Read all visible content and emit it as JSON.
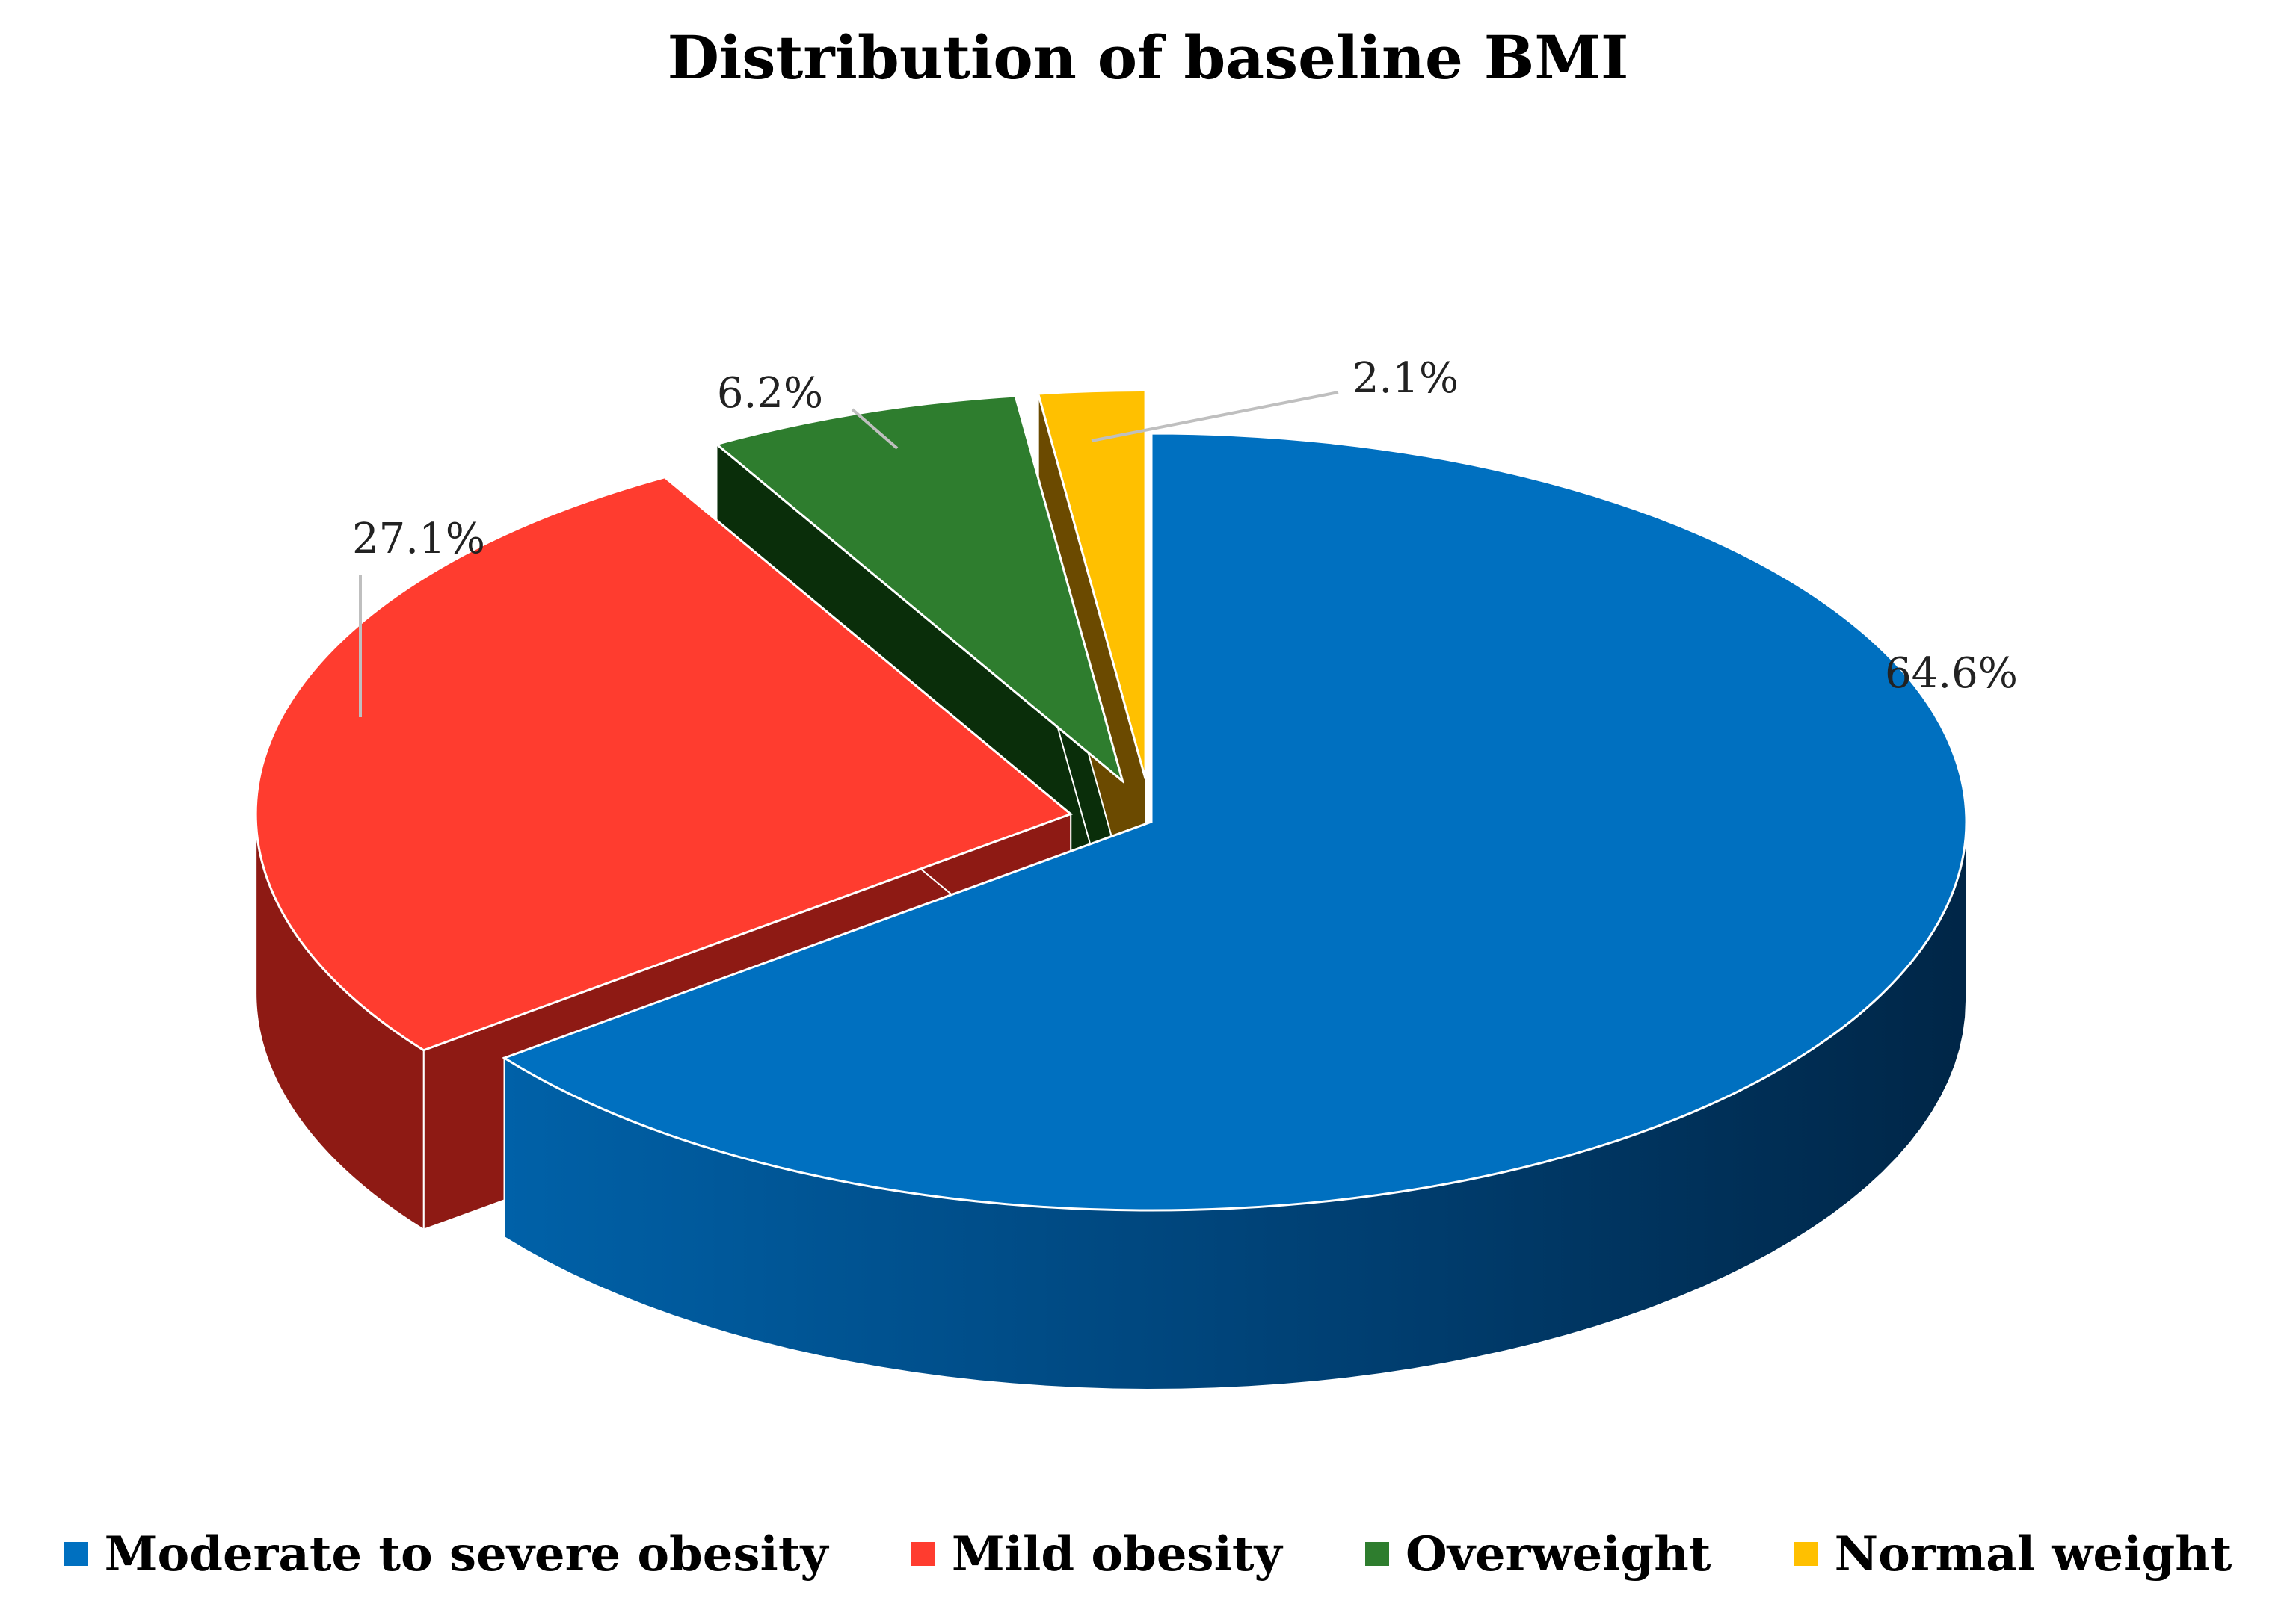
{
  "chart_data": {
    "type": "pie",
    "title": "Distribution of baseline BMI",
    "categories": [
      "Moderate to severe obesity",
      "Mild obesity",
      "Overweight",
      "Normal weight"
    ],
    "values": [
      64.6,
      27.1,
      6.2,
      2.1
    ],
    "labels": [
      "64.6%",
      "27.1%",
      "6.2%",
      "2.1%"
    ],
    "colors": [
      "#0070C0",
      "#FF3C2F",
      "#2E7D2E",
      "#FFC000"
    ],
    "side_colors": [
      "#003A6B",
      "#8E1A14",
      "#0A2E0A",
      "#6B4A00"
    ],
    "legend_position": "bottom",
    "style": "3d-exploded"
  }
}
